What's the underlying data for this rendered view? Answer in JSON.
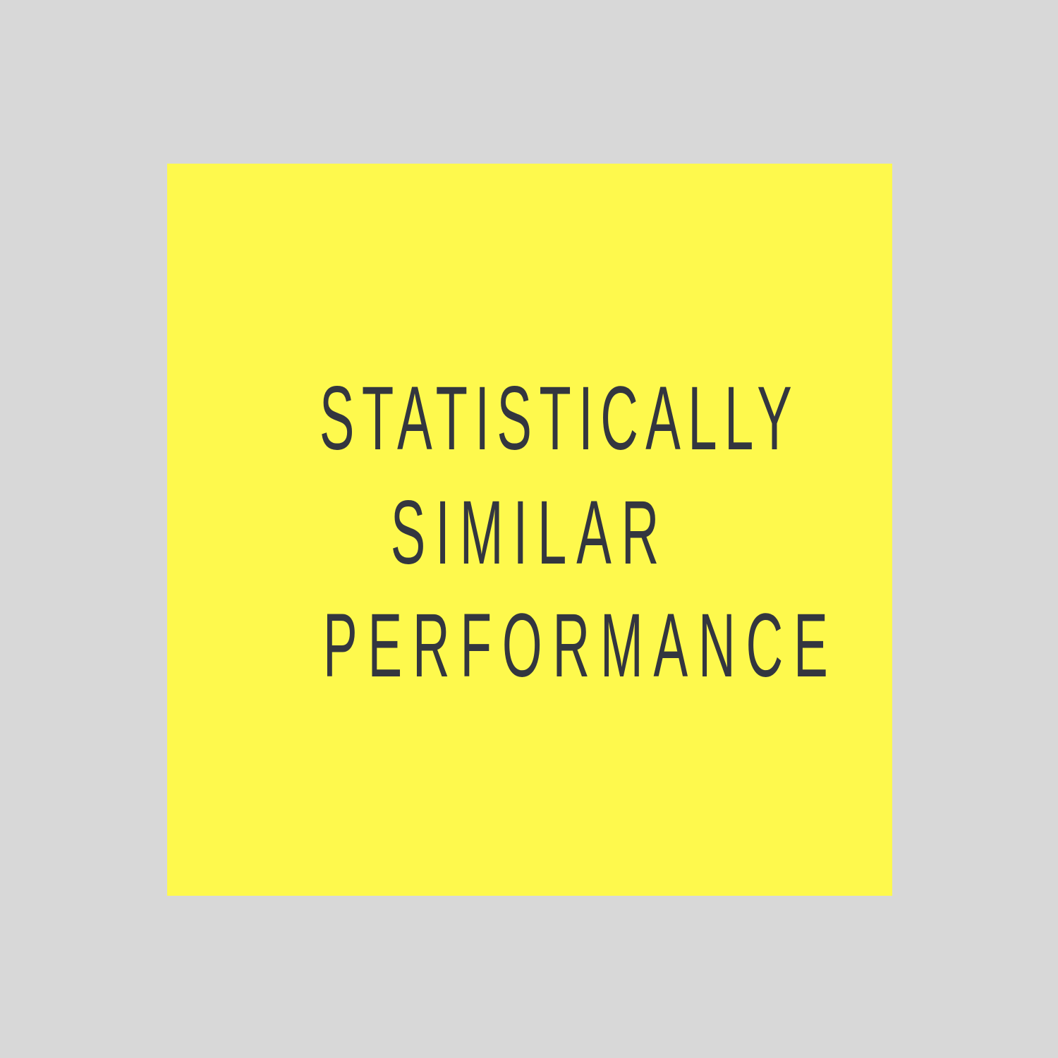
{
  "card": {
    "lines": [
      "STATISTICALLY",
      "SIMILAR",
      "PERFORMANCE"
    ]
  },
  "colors": {
    "background": "#d8d8d8",
    "card": "#fef94d",
    "text": "#33363f"
  }
}
